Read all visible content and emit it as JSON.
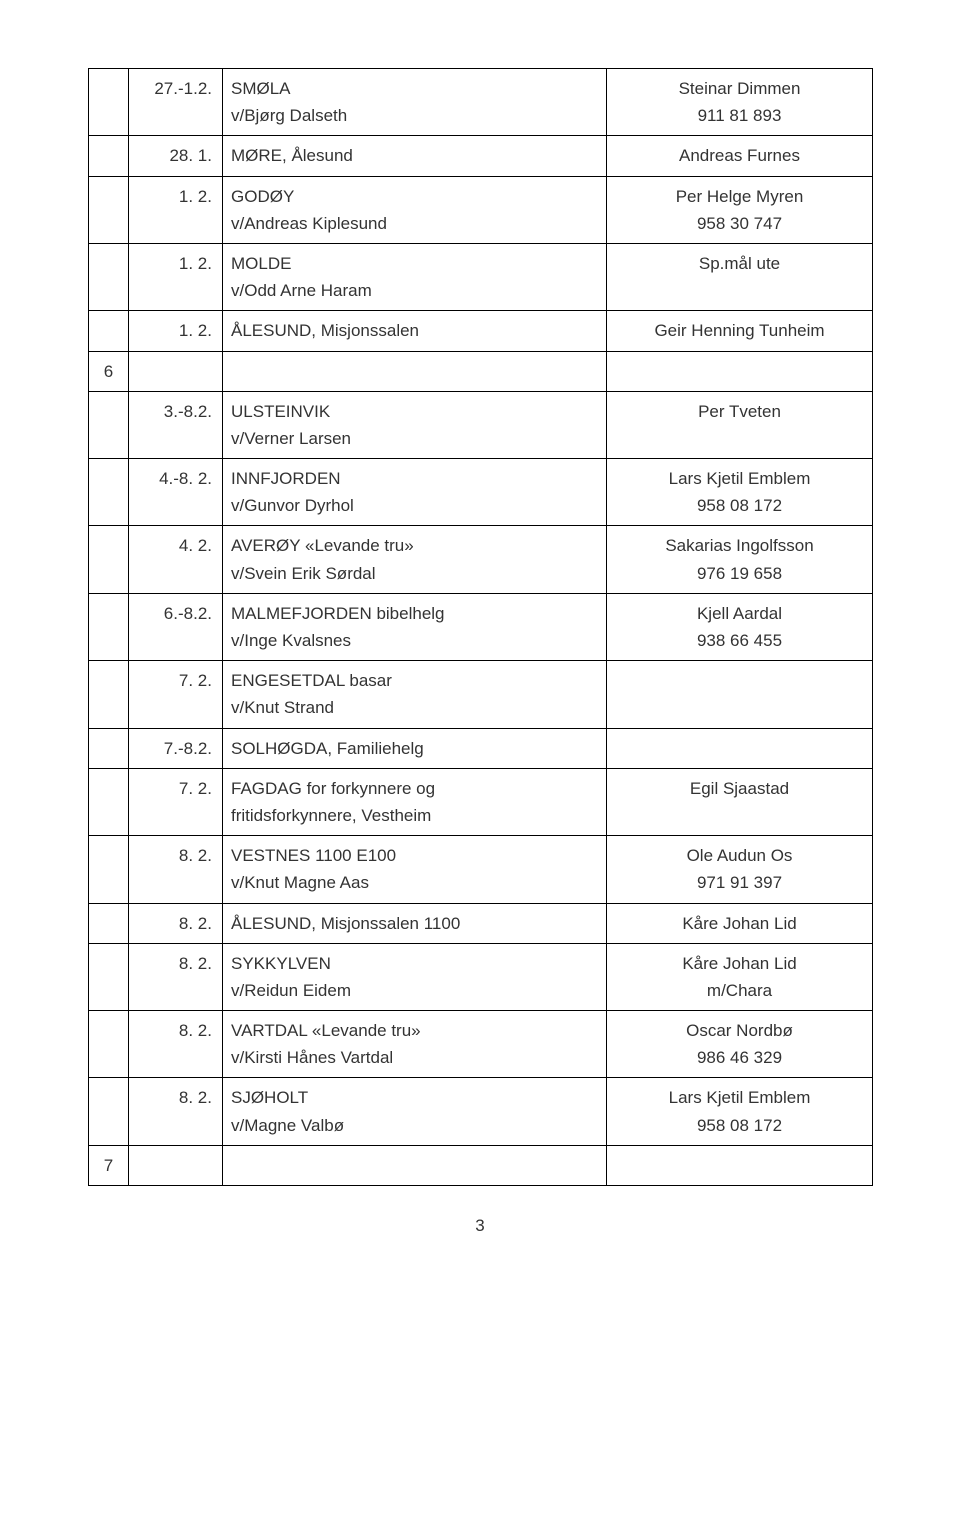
{
  "rows": [
    {
      "c1": "",
      "c2": "27.-1.2.",
      "c3a": "SMØLA",
      "c3b": "v/Bjørg Dalseth",
      "c4a": "Steinar Dimmen",
      "c4b": "911 81 893"
    },
    {
      "c1": "",
      "c2": "28. 1.",
      "c3a": "MØRE, Ålesund",
      "c3b": "",
      "c4a": "Andreas Furnes",
      "c4b": ""
    },
    {
      "c1": "",
      "c2": "1. 2.",
      "c3a": "GODØY",
      "c3b": "v/Andreas Kiplesund",
      "c4a": "Per Helge Myren",
      "c4b": "958 30 747"
    },
    {
      "c1": "",
      "c2": "1. 2.",
      "c3a": "MOLDE",
      "c3b": "v/Odd Arne Haram",
      "c4a": "Sp.mål ute",
      "c4b": ""
    },
    {
      "c1": "",
      "c2": "1. 2.",
      "c3a": "ÅLESUND, Misjonssalen",
      "c3b": "",
      "c4a": "Geir Henning Tunheim",
      "c4b": ""
    },
    {
      "c1": "6",
      "c2": "",
      "c3a": "",
      "c3b": "",
      "c4a": "",
      "c4b": ""
    },
    {
      "c1": "",
      "c2": "3.-8.2.",
      "c3a": "ULSTEINVIK",
      "c3b": "v/Verner Larsen",
      "c4a": "Per Tveten",
      "c4b": ""
    },
    {
      "c1": "",
      "c2": "4.-8. 2.",
      "c3a": "INNFJORDEN",
      "c3b": "v/Gunvor Dyrhol",
      "c4a": "Lars Kjetil Emblem",
      "c4b": "958 08 172"
    },
    {
      "c1": "",
      "c2": "4. 2.",
      "c3a": "AVERØY «Levande tru»",
      "c3b": "v/Svein Erik Sørdal",
      "c4a": "Sakarias Ingolfsson",
      "c4b": "976 19 658"
    },
    {
      "c1": "",
      "c2": "6.-8.2.",
      "c3a": "MALMEFJORDEN bibelhelg",
      "c3b": "v/Inge Kvalsnes",
      "c4a": "Kjell Aardal",
      "c4b": "938 66 455"
    },
    {
      "c1": "",
      "c2": "7. 2.",
      "c3a": "ENGESETDAL  basar",
      "c3b": "v/Knut Strand",
      "c4a": "",
      "c4b": ""
    },
    {
      "c1": "",
      "c2": "7.-8.2.",
      "c3a": "SOLHØGDA, Familiehelg",
      "c3b": "",
      "c4a": "",
      "c4b": ""
    },
    {
      "c1": "",
      "c2": "7. 2.",
      "c3a": "FAGDAG for forkynnere og",
      "c3b": "fritidsforkynnere, Vestheim",
      "c4a": "Egil Sjaastad",
      "c4b": ""
    },
    {
      "c1": "",
      "c2": "8. 2.",
      "c3a": "VESTNES  1100  E100",
      "c3b": "v/Knut Magne Aas",
      "c4a": "Ole Audun Os",
      "c4b": "971 91 397"
    },
    {
      "c1": "",
      "c2": "8. 2.",
      "c3a": "ÅLESUND, Misjonssalen  1100",
      "c3b": "",
      "c4a": "Kåre Johan Lid",
      "c4b": ""
    },
    {
      "c1": "",
      "c2": "8. 2.",
      "c3a": "SYKKYLVEN",
      "c3b": "v/Reidun Eidem",
      "c4a": "Kåre Johan Lid",
      "c4b": "m/Chara"
    },
    {
      "c1": "",
      "c2": "8. 2.",
      "c3a": "VARTDAL  «Levande tru»",
      "c3b": "v/Kirsti Hånes Vartdal",
      "c4a": "Oscar Nordbø",
      "c4b": "986 46 329"
    },
    {
      "c1": "",
      "c2": "8. 2.",
      "c3a": "SJØHOLT",
      "c3b": "v/Magne Valbø",
      "c4a": "Lars Kjetil Emblem",
      "c4b": "958 08 172"
    },
    {
      "c1": "7",
      "c2": "",
      "c3a": "",
      "c3b": "",
      "c4a": "",
      "c4b": ""
    }
  ],
  "page_number": "3"
}
